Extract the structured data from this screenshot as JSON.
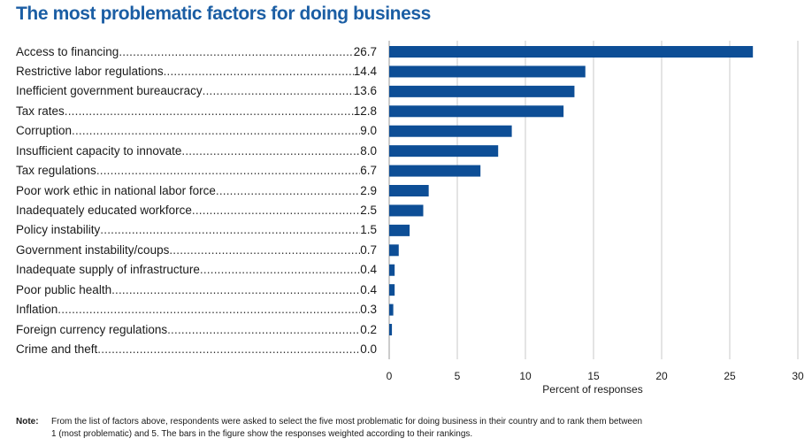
{
  "chart_data": {
    "type": "bar",
    "orientation": "horizontal",
    "title": "The most problematic factors for doing business",
    "xlabel": "Percent of responses",
    "xlim": [
      0,
      30
    ],
    "xticks": [
      "0",
      "5",
      "10",
      "15",
      "20",
      "25",
      "30"
    ],
    "grid": true,
    "bar_color": "#0d4e96",
    "grid_color": "#c8c8c8",
    "title_color": "#1b5ea4",
    "categories": [
      "Access to financing",
      "Restrictive labor regulations",
      "Inefficient government bureaucracy",
      "Tax rates",
      "Corruption",
      "Insufficient capacity to innovate",
      "Tax regulations",
      "Poor work ethic in national labor force",
      "Inadequately educated workforce",
      "Policy instability",
      "Government instability/coups",
      "Inadequate supply of infrastructure",
      "Poor public health",
      "Inflation",
      "Foreign currency regulations",
      "Crime and theft"
    ],
    "values": [
      26.7,
      14.4,
      13.6,
      12.8,
      9.0,
      8.0,
      6.7,
      2.9,
      2.5,
      1.5,
      0.7,
      0.4,
      0.4,
      0.3,
      0.2,
      0.0
    ],
    "value_labels": [
      "26.7",
      "14.4",
      "13.6",
      "12.8",
      "9.0",
      "8.0",
      "6.7",
      "2.9",
      "2.5",
      "1.5",
      "0.7",
      "0.4",
      "0.4",
      "0.3",
      "0.2",
      "0.0"
    ]
  },
  "note": {
    "label": "Note:",
    "line1": "From the list of factors above, respondents were asked to select the five most problematic for doing business in their country and to rank them between",
    "line2": "1 (most problematic) and 5. The bars in the figure show the responses weighted according to their rankings."
  }
}
